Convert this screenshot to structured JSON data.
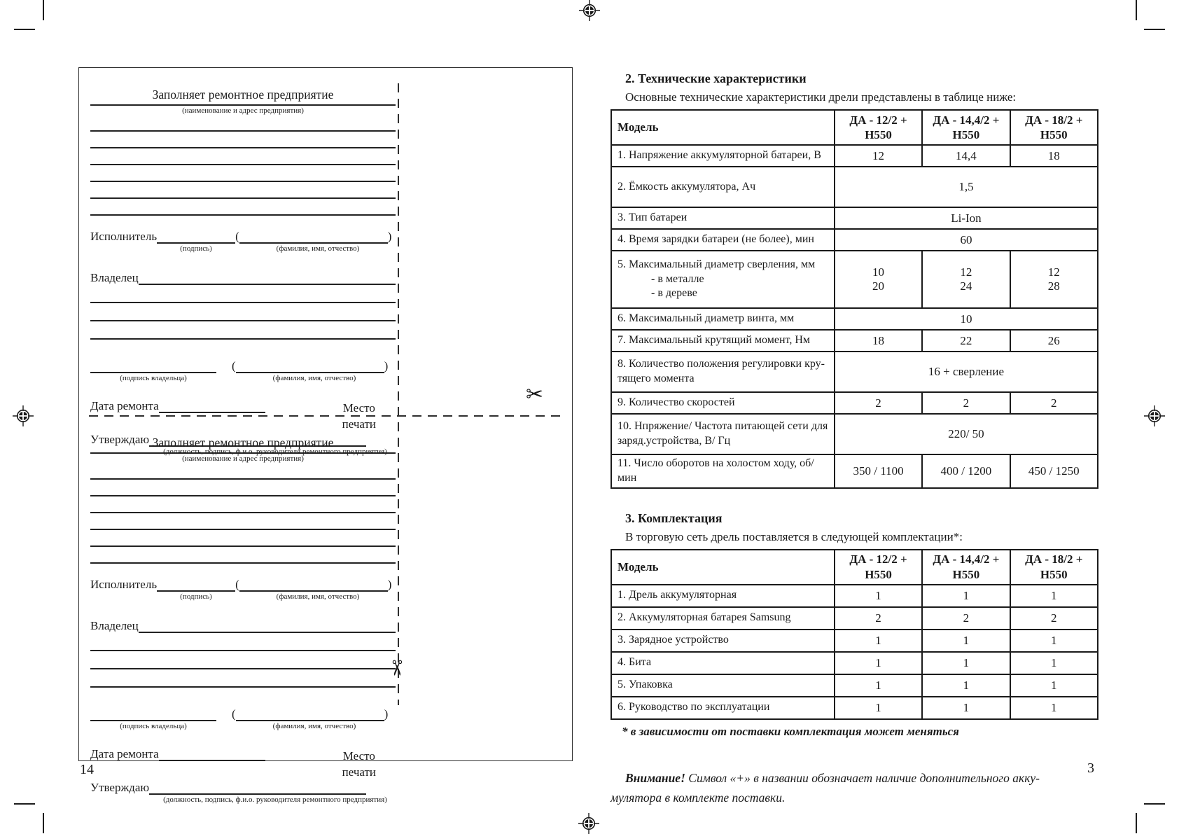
{
  "icons": {
    "scissors": "✂"
  },
  "page_left": {
    "page_number": "14",
    "form": {
      "title": "Заполняет ремонтное предприятие",
      "company_caption": "(наименование и адрес предприятия)",
      "executor_label": "Исполнитель",
      "open_paren": "(",
      "close_paren": ")",
      "signature_caption": "(подпись)",
      "fullname_caption": "(фамилия, имя, отчество)",
      "owner_label": "Владелец",
      "owner_signature_caption": "(подпись владельца)",
      "repair_date_label": "Дата ремонта",
      "stamp_place": "Место\nпечати",
      "approve_label": "Утверждаю",
      "approve_caption": "(должность, подпись, ф.и.о. руководителя ремонтного предприятия)"
    }
  },
  "page_right": {
    "page_number": "3",
    "section2": {
      "heading": "2. Технические характеристики",
      "intro": "Основные технические характеристики дрели представлены в таблице ниже:"
    },
    "spec_table": {
      "model_header": "Модель",
      "columns": [
        "ДА - 12/2 +\nН550",
        "ДА - 14,4/2 +\nН550",
        "ДА - 18/2 +\nН550"
      ],
      "rows": [
        {
          "label": "1. Напряжение аккумуляторной батареи, В",
          "values": [
            "12",
            "14,4",
            "18"
          ]
        },
        {
          "label": "2. Ёмкость аккумулятора, Ач",
          "merged": "1,5"
        },
        {
          "label": "3. Тип батареи",
          "merged": "Li-Ion"
        },
        {
          "label": "4. Время зарядки батареи (не более), мин",
          "merged": "60"
        },
        {
          "label": "5. Максимальный диаметр сверления, мм\n            - в металле\n            - в дереве",
          "values": [
            "10\n20",
            "12\n24",
            "12\n28"
          ]
        },
        {
          "label": "6. Максимальный диаметр винта, мм",
          "merged": "10"
        },
        {
          "label": "7. Максимальный крутящий момент, Нм",
          "values": [
            "18",
            "22",
            "26"
          ]
        },
        {
          "label": "8. Количество положения регулировки кру-\nтящего момента",
          "merged": "16 + сверление"
        },
        {
          "label": "9. Количество скоростей",
          "values": [
            "2",
            "2",
            "2"
          ]
        },
        {
          "label": "10. Нпряжение/ Частота питающей сети для\nзаряд.устройства, В/ Гц",
          "merged": "220/ 50"
        },
        {
          "label": "11. Число оборотов на холостом ходу, об/ мин",
          "values": [
            "350 / 1100",
            "400 / 1200",
            "450 / 1250"
          ]
        }
      ]
    },
    "section3": {
      "heading": "3. Комплектация",
      "intro": "В торговую сеть дрель поставляется в следующей комплектации*:",
      "footnote": "* в зависимости от поставки комплектация может меняться",
      "attention_bold": "Внимание!",
      "attention_line1": " Символ «+» в названии обозначает наличие дополнительного акку-",
      "attention_line2": "мулятора в комплекте поставки."
    },
    "kit_table": {
      "model_header": "Модель",
      "columns": [
        "ДА - 12/2 +\nН550",
        "ДА - 14,4/2 +\nН550",
        "ДА - 18/2 +\nН550"
      ],
      "rows": [
        {
          "label": "1. Дрель аккумуляторная",
          "values": [
            "1",
            "1",
            "1"
          ]
        },
        {
          "label": "2. Аккумуляторная батарея Samsung",
          "values": [
            "2",
            "2",
            "2"
          ]
        },
        {
          "label": "3. Зарядное устройство",
          "values": [
            "1",
            "1",
            "1"
          ]
        },
        {
          "label": "4. Бита",
          "values": [
            "1",
            "1",
            "1"
          ]
        },
        {
          "label": "5. Упаковка",
          "values": [
            "1",
            "1",
            "1"
          ]
        },
        {
          "label": "6. Руководство по эксплуатации",
          "values": [
            "1",
            "1",
            "1"
          ]
        }
      ]
    }
  }
}
